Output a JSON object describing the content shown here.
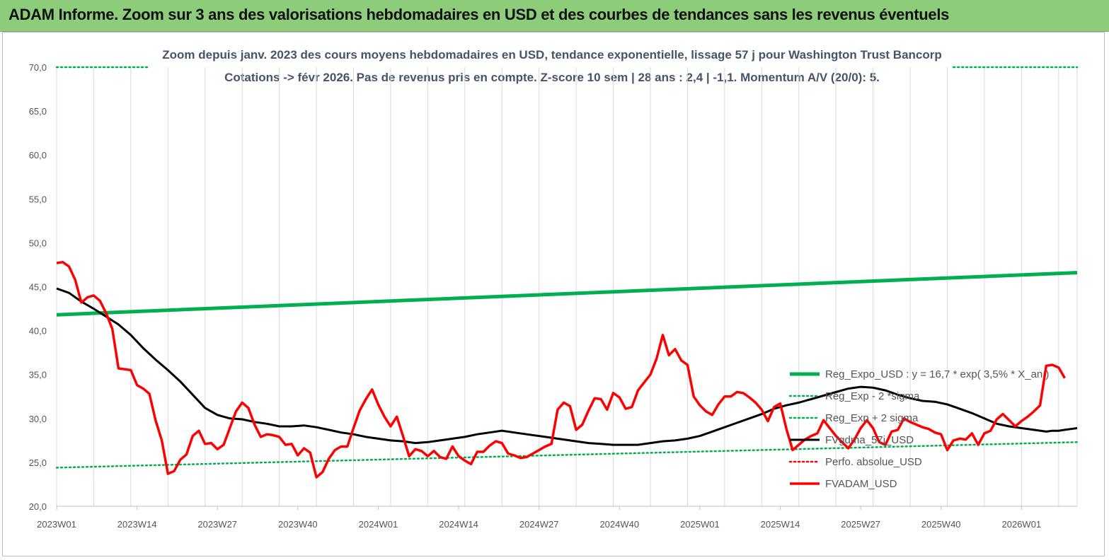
{
  "header": {
    "title": "ADAM Informe. Zoom sur 3 ans des valorisations hebdomadaires en USD et des courbes de tendances sans les revenus éventuels"
  },
  "chart_data": {
    "type": "line",
    "title_line1": "Zoom depuis janv. 2023 des cours moyens hebdomadaires en USD, tendance exponentielle, lissage 57 j pour Washington Trust Bancorp",
    "title_line2": "Cotations -> févr 2026.  Pas de revenus pris en compte. Z-score 10 sem  | 28 ans : 2,4 | -1,1. Momentum A/V (20/0): 5.",
    "x_ticks": [
      "2023W01",
      "2023W14",
      "2023W27",
      "2023W40",
      "2024W01",
      "2024W14",
      "2024W27",
      "2024W40",
      "2025W01",
      "2025W14",
      "2025W27",
      "2025W40",
      "2026W01"
    ],
    "y_ticks": [
      "20,0",
      "25,0",
      "30,0",
      "35,0",
      "40,0",
      "45,0",
      "50,0",
      "55,0",
      "60,0",
      "65,0",
      "70,0"
    ],
    "ylim": [
      20,
      70
    ],
    "x_range_weeks": [
      0,
      165
    ],
    "grid": "vertical",
    "legend_position": "right",
    "colors": {
      "reg_expo": "#00b050",
      "reg_sigma": "#00b050",
      "fvgdma": "#000000",
      "perfo": "#ff0000",
      "fvadam": "#ff0000",
      "grid": "#d9d9d9"
    },
    "series": [
      {
        "name": "Reg_Expo_USD : y = 16,7 * exp( 3,5% *  X_an )",
        "style": "thick-solid",
        "points": [
          [
            0,
            41.8
          ],
          [
            165,
            46.6
          ]
        ]
      },
      {
        "name": "Reg_Exp - 2 *sigma",
        "style": "dotted",
        "points": [
          [
            0,
            24.4
          ],
          [
            165,
            27.3
          ]
        ]
      },
      {
        "name": "Reg_Exp + 2 sigma",
        "style": "dotted",
        "points": [
          [
            0,
            70.0
          ],
          [
            15,
            70.0
          ],
          [
            145,
            70.0
          ],
          [
            165,
            70.0
          ]
        ],
        "segments": [
          [
            0,
            15
          ],
          [
            145,
            165
          ]
        ]
      },
      {
        "name": "FVgdma_57j_USD",
        "style": "solid",
        "points": [
          [
            0,
            44.8
          ],
          [
            2,
            44.3
          ],
          [
            4,
            43.3
          ],
          [
            6,
            42.5
          ],
          [
            8,
            41.6
          ],
          [
            10,
            40.7
          ],
          [
            12,
            39.5
          ],
          [
            14,
            38.0
          ],
          [
            16,
            36.7
          ],
          [
            18,
            35.5
          ],
          [
            20,
            34.2
          ],
          [
            22,
            32.7
          ],
          [
            24,
            31.2
          ],
          [
            26,
            30.4
          ],
          [
            28,
            30.0
          ],
          [
            30,
            29.9
          ],
          [
            32,
            29.6
          ],
          [
            34,
            29.4
          ],
          [
            36,
            29.1
          ],
          [
            38,
            29.1
          ],
          [
            40,
            29.2
          ],
          [
            42,
            29.0
          ],
          [
            44,
            28.7
          ],
          [
            46,
            28.4
          ],
          [
            48,
            28.2
          ],
          [
            50,
            27.9
          ],
          [
            52,
            27.7
          ],
          [
            54,
            27.5
          ],
          [
            56,
            27.4
          ],
          [
            58,
            27.2
          ],
          [
            60,
            27.3
          ],
          [
            62,
            27.5
          ],
          [
            64,
            27.7
          ],
          [
            66,
            27.9
          ],
          [
            68,
            28.2
          ],
          [
            70,
            28.4
          ],
          [
            72,
            28.6
          ],
          [
            74,
            28.4
          ],
          [
            76,
            28.2
          ],
          [
            78,
            28.0
          ],
          [
            80,
            27.8
          ],
          [
            82,
            27.6
          ],
          [
            84,
            27.4
          ],
          [
            86,
            27.2
          ],
          [
            88,
            27.1
          ],
          [
            90,
            27.0
          ],
          [
            92,
            27.0
          ],
          [
            94,
            27.0
          ],
          [
            96,
            27.2
          ],
          [
            98,
            27.4
          ],
          [
            100,
            27.5
          ],
          [
            102,
            27.7
          ],
          [
            104,
            28.0
          ],
          [
            106,
            28.5
          ],
          [
            108,
            29.0
          ],
          [
            110,
            29.5
          ],
          [
            112,
            30.0
          ],
          [
            114,
            30.5
          ],
          [
            116,
            31.1
          ],
          [
            118,
            31.5
          ],
          [
            120,
            31.8
          ],
          [
            122,
            32.2
          ],
          [
            124,
            32.6
          ],
          [
            126,
            33.0
          ],
          [
            128,
            33.4
          ],
          [
            130,
            33.6
          ],
          [
            132,
            33.5
          ],
          [
            134,
            33.2
          ],
          [
            136,
            32.7
          ],
          [
            138,
            32.3
          ],
          [
            140,
            32.0
          ],
          [
            142,
            31.9
          ],
          [
            144,
            31.6
          ],
          [
            146,
            31.1
          ],
          [
            148,
            30.6
          ],
          [
            150,
            30.0
          ],
          [
            152,
            29.4
          ],
          [
            154,
            29.1
          ],
          [
            156,
            28.9
          ],
          [
            158,
            28.7
          ],
          [
            160,
            28.5
          ]
        ]
      },
      {
        "name": "Perfo. absolue_USD",
        "style": "dotted-red",
        "points": []
      },
      {
        "name": "FVADAM_USD",
        "style": "thick-red",
        "points": [
          [
            0,
            47.7
          ],
          [
            1,
            47.8
          ],
          [
            2,
            47.3
          ],
          [
            3,
            45.8
          ],
          [
            4,
            43.2
          ],
          [
            5,
            43.8
          ],
          [
            6,
            44.0
          ],
          [
            7,
            43.4
          ],
          [
            8,
            42.0
          ],
          [
            9,
            40.2
          ],
          [
            10,
            35.7
          ],
          [
            11,
            35.6
          ],
          [
            12,
            35.5
          ],
          [
            13,
            33.8
          ],
          [
            14,
            33.4
          ],
          [
            15,
            32.8
          ],
          [
            16,
            29.8
          ],
          [
            17,
            27.5
          ],
          [
            18,
            23.7
          ],
          [
            19,
            24.0
          ],
          [
            20,
            25.3
          ],
          [
            21,
            25.9
          ],
          [
            22,
            28.0
          ],
          [
            23,
            28.6
          ],
          [
            24,
            27.1
          ],
          [
            25,
            27.2
          ],
          [
            26,
            26.5
          ],
          [
            27,
            27.0
          ],
          [
            28,
            28.9
          ],
          [
            29,
            30.8
          ],
          [
            30,
            31.8
          ],
          [
            31,
            31.2
          ],
          [
            32,
            29.3
          ],
          [
            33,
            27.9
          ],
          [
            34,
            28.2
          ],
          [
            35,
            28.1
          ],
          [
            36,
            27.9
          ],
          [
            37,
            27.0
          ],
          [
            38,
            27.1
          ],
          [
            39,
            25.8
          ],
          [
            40,
            26.6
          ],
          [
            41,
            26.1
          ],
          [
            42,
            23.3
          ],
          [
            43,
            23.9
          ],
          [
            44,
            25.4
          ],
          [
            45,
            26.4
          ],
          [
            46,
            26.8
          ],
          [
            47,
            26.8
          ],
          [
            48,
            28.9
          ],
          [
            49,
            30.9
          ],
          [
            50,
            32.2
          ],
          [
            51,
            33.3
          ],
          [
            52,
            31.6
          ],
          [
            53,
            30.2
          ],
          [
            54,
            29.1
          ],
          [
            55,
            30.2
          ],
          [
            56,
            28.0
          ],
          [
            57,
            25.7
          ],
          [
            58,
            26.5
          ],
          [
            59,
            26.3
          ],
          [
            60,
            25.7
          ],
          [
            61,
            26.3
          ],
          [
            62,
            25.6
          ],
          [
            63,
            25.4
          ],
          [
            64,
            26.8
          ],
          [
            65,
            25.7
          ],
          [
            66,
            25.2
          ],
          [
            67,
            24.8
          ],
          [
            68,
            26.2
          ],
          [
            69,
            26.2
          ],
          [
            70,
            26.9
          ],
          [
            71,
            27.4
          ],
          [
            72,
            27.2
          ],
          [
            73,
            26.0
          ],
          [
            74,
            25.8
          ],
          [
            75,
            25.5
          ],
          [
            76,
            25.6
          ],
          [
            77,
            26.0
          ],
          [
            78,
            26.4
          ],
          [
            79,
            26.8
          ],
          [
            80,
            27.1
          ],
          [
            81,
            31.0
          ],
          [
            82,
            31.8
          ],
          [
            83,
            31.4
          ],
          [
            84,
            28.7
          ],
          [
            85,
            29.3
          ],
          [
            86,
            30.9
          ],
          [
            87,
            32.3
          ],
          [
            88,
            32.2
          ],
          [
            89,
            31.0
          ],
          [
            90,
            32.9
          ],
          [
            91,
            32.4
          ],
          [
            92,
            31.1
          ],
          [
            93,
            31.3
          ],
          [
            94,
            33.2
          ],
          [
            95,
            34.1
          ],
          [
            96,
            35.0
          ],
          [
            97,
            36.8
          ],
          [
            98,
            39.5
          ],
          [
            99,
            37.2
          ],
          [
            100,
            37.9
          ],
          [
            101,
            36.6
          ],
          [
            102,
            36.1
          ],
          [
            103,
            32.5
          ],
          [
            104,
            31.5
          ],
          [
            105,
            30.8
          ],
          [
            106,
            30.4
          ],
          [
            107,
            31.6
          ],
          [
            108,
            32.5
          ],
          [
            109,
            32.5
          ],
          [
            110,
            33.0
          ],
          [
            111,
            32.9
          ],
          [
            112,
            32.4
          ],
          [
            113,
            31.8
          ],
          [
            114,
            31.0
          ],
          [
            115,
            29.7
          ],
          [
            116,
            31.3
          ],
          [
            117,
            31.7
          ],
          [
            118,
            28.8
          ],
          [
            119,
            26.4
          ],
          [
            120,
            27.0
          ],
          [
            121,
            27.6
          ],
          [
            122,
            28.0
          ],
          [
            123,
            28.3
          ],
          [
            124,
            29.8
          ],
          [
            125,
            28.9
          ],
          [
            126,
            28.0
          ],
          [
            127,
            27.3
          ],
          [
            128,
            26.6
          ],
          [
            129,
            27.6
          ],
          [
            130,
            28.9
          ],
          [
            131,
            29.8
          ],
          [
            132,
            28.9
          ],
          [
            133,
            27.3
          ],
          [
            134,
            27.0
          ],
          [
            135,
            28.5
          ],
          [
            136,
            28.7
          ],
          [
            137,
            30.0
          ],
          [
            138,
            29.6
          ],
          [
            139,
            29.3
          ],
          [
            140,
            29.0
          ],
          [
            141,
            28.8
          ],
          [
            142,
            28.4
          ],
          [
            143,
            28.2
          ],
          [
            144,
            26.4
          ],
          [
            145,
            27.5
          ],
          [
            146,
            27.7
          ],
          [
            147,
            27.6
          ],
          [
            148,
            28.3
          ],
          [
            149,
            27.0
          ],
          [
            150,
            28.3
          ],
          [
            151,
            28.6
          ],
          [
            152,
            29.9
          ],
          [
            153,
            30.5
          ],
          [
            154,
            29.8
          ],
          [
            155,
            29.1
          ],
          [
            156,
            29.7
          ],
          [
            157,
            30.2
          ],
          [
            158,
            30.8
          ],
          [
            159,
            31.5
          ],
          [
            160,
            36.0
          ],
          [
            161,
            36.1
          ],
          [
            162,
            35.8
          ],
          [
            163,
            34.6
          ]
        ]
      }
    ],
    "fvgdma_tail": [
      [
        160,
        28.5
      ],
      [
        161,
        28.6
      ],
      [
        162,
        28.6
      ],
      [
        163,
        28.7
      ],
      [
        164,
        28.8
      ],
      [
        165,
        28.9
      ]
    ]
  }
}
